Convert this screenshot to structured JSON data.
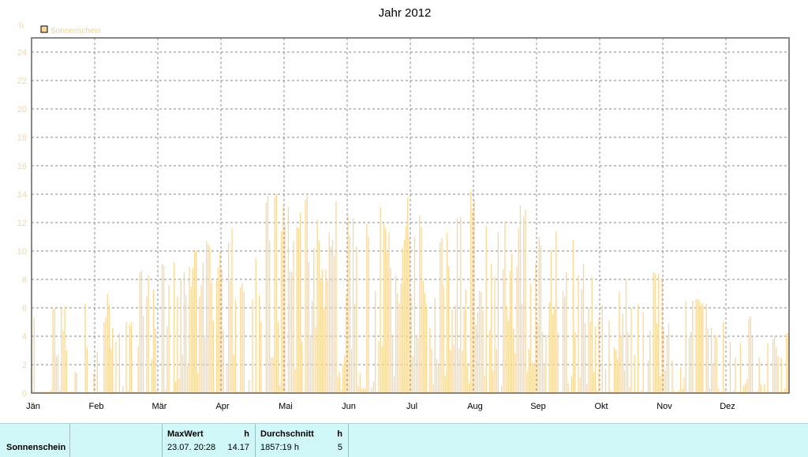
{
  "colors": {
    "bar": "#fcd798",
    "grid": "#888888",
    "y_tick_label": "#f5d6a0",
    "stats_background": "#d0f8f8"
  },
  "chart_data": {
    "type": "bar",
    "title": "Jahr 2012",
    "ylabel": "h",
    "ylim": [
      0,
      25
    ],
    "y_ticks": [
      0,
      2,
      4,
      6,
      8,
      10,
      12,
      14,
      16,
      18,
      20,
      22,
      24
    ],
    "x_tick_labels": [
      "Jän",
      "Feb",
      "Mär",
      "Apr",
      "Mai",
      "Jun",
      "Jul",
      "Aug",
      "Sep",
      "Okt",
      "Nov",
      "Dez"
    ],
    "grid": true,
    "legend_position": "top-left",
    "series": [
      {
        "name": "Sonnenschein",
        "color": "#fcd798",
        "values": [
          0.2,
          5.3,
          0.1,
          0.1,
          0.1,
          0.1,
          0.1,
          0.1,
          0.1,
          0.1,
          0.1,
          0.2,
          5.9,
          6.0,
          2.6,
          2.7,
          0.2,
          6.0,
          4.4,
          6.1,
          3.0,
          0.1,
          0.1,
          0.1,
          0.1,
          1.5,
          1.4,
          0.1,
          0.1,
          0.0,
          0.0,
          6.3,
          3.2,
          0.1,
          0.0,
          0.0,
          1.4,
          0.1,
          2.9,
          0.1,
          0.1,
          0.1,
          5.0,
          5.3,
          7.0,
          6.2,
          3.1,
          4.6,
          0.1,
          3.6,
          0.1,
          4.2,
          0.1,
          0.5,
          0.1,
          5.0,
          0.2,
          4.8,
          5.0,
          0.1,
          0.1,
          0.1,
          3.3,
          8.5,
          8.6,
          5.4,
          0.1,
          6.8,
          8.3,
          0.1,
          2.4,
          7.3,
          4.5,
          0.2,
          0.1,
          0.1,
          9.1,
          9.0,
          0.2,
          4.7,
          7.6,
          0.1,
          0.1,
          9.2,
          0.8,
          6.8,
          1.0,
          8.0,
          2.7,
          8.5,
          6.9,
          1.9,
          8.9,
          7.5,
          8.8,
          10.0,
          10.0,
          1.4,
          6.8,
          7.6,
          9.2,
          3.9,
          10.7,
          10.5,
          10.3,
          7.8,
          5.1,
          0.1,
          7.9,
          8.8,
          9.9,
          8.7,
          4.4,
          0.1,
          1.9,
          10.6,
          7.9,
          11.6,
          2.7,
          6.6,
          0.1,
          0.1,
          7.4,
          7.7,
          7.1,
          0.1,
          0.1,
          0.9,
          0.1,
          6.6,
          0.1,
          9.5,
          0.1,
          6.9,
          5.0,
          0.1,
          0.1,
          13.4,
          13.9,
          10.7,
          2.5,
          2.5,
          13.8,
          14.0,
          5.0,
          0.5,
          11.4,
          13.2,
          11.8,
          0.1,
          13.1,
          8.6,
          8.5,
          10.7,
          1.7,
          11.7,
          11.6,
          12.7,
          3.6,
          0.1,
          13.6,
          13.9,
          9.2,
          4.1,
          6.5,
          10.2,
          4.6,
          12.2,
          10.7,
          7.9,
          8.7,
          6.0,
          8.7,
          7.9,
          11.3,
          10.3,
          10.8,
          9.7,
          13.5,
          1.1,
          1.5,
          0.2,
          2.0,
          2.6,
          6.9,
          12.5,
          11.1,
          3.1,
          12.3,
          6.3,
          10.3,
          0.5,
          1.4,
          0.3,
          0.3,
          0.3,
          11.9,
          11.0,
          0.1,
          0.4,
          0.8,
          7.2,
          0.1,
          3.7,
          13.1,
          3.3,
          11.9,
          11.6,
          9.9,
          11.3,
          8.8,
          4.1,
          1.2,
          8.3,
          7.0,
          6.3,
          7.7,
          10.2,
          10.8,
          11.8,
          13.8,
          10.9,
          6.9,
          2.6,
          11.0,
          4.1,
          3.9,
          12.5,
          11.7,
          7.9,
          7.0,
          6.2,
          0.1,
          4.6,
          3.1,
          0.6,
          6.7,
          2.4,
          2.1,
          10.6,
          10.9,
          7.6,
          1.2,
          11.3,
          8.9,
          3.0,
          5.9,
          3.4,
          6.2,
          12.3,
          3.1,
          12.4,
          3.0,
          5.9,
          7.3,
          2.1,
          0.7,
          14.2,
          12.8,
          13.6,
          4.8,
          5.7,
          7.2,
          7.1,
          5.8,
          1.2,
          11.8,
          0.1,
          4.4,
          9.1,
          1.6,
          8.2,
          3.1,
          11.3,
          0.1,
          0.5,
          8.7,
          12.1,
          6.1,
          5.1,
          8.6,
          9.8,
          4.5,
          2.8,
          8.9,
          11.6,
          13.2,
          6.3,
          12.4,
          12.9,
          1.5,
          3.1,
          7.7,
          2.2,
          2.0,
          9.1,
          4.9,
          11.0,
          10.4,
          4.3,
          2.1,
          4.1,
          0.1,
          6.4,
          10.1,
          5.6,
          6.1,
          11.4,
          4.2,
          0.1,
          0.1,
          7.2,
          6.8,
          8.5,
          0.7,
          0.1,
          1.2,
          10.8,
          4.3,
          0.1,
          8.3,
          1.1,
          7.3,
          9.1,
          4.9,
          0.6,
          6.0,
          5.0,
          8.2,
          1.5,
          4.7,
          0.2,
          5.2,
          0.1,
          6.2,
          0.1,
          1.7,
          0.1,
          5.1,
          0.2,
          0.1,
          3.2,
          3.0,
          2.4,
          7.1,
          4.0,
          5.6,
          1.6,
          8.0,
          4.3,
          0.4,
          6.0,
          0.1,
          2.7,
          0.1,
          6.2,
          0.1,
          0.2,
          5.7,
          0.1,
          0.1,
          2.3,
          4.4,
          0.1,
          8.5,
          8.4,
          4.9,
          8.4,
          1.2,
          8.0,
          4.5,
          1.6,
          4.0,
          4.9,
          0.1,
          2.3,
          0.2,
          0.1,
          0.1,
          0.2,
          1.8,
          0.3,
          1.1,
          6.5,
          0.1,
          3.9,
          4.3,
          6.5,
          0.1,
          6.6,
          6.6,
          6.5,
          6.2,
          6.3,
          0.1,
          6.3,
          4.5,
          0.3,
          4.6,
          2.1,
          4.1,
          4.0,
          0.3,
          0.1,
          0.1,
          5.0,
          0.2,
          0.1,
          0.1,
          3.6,
          0.1,
          0.2,
          2.5,
          0.1,
          0.1,
          3.5,
          0.1,
          0.5,
          0.7,
          1.0,
          5.2,
          5.4,
          4.0,
          0.1,
          0.1,
          0.2,
          2.5,
          0.6,
          0.1,
          0.6,
          0.1,
          3.5,
          0.1,
          0.1,
          3.8,
          4.0,
          3.2,
          2.6,
          0.1,
          2.5,
          0.1,
          0.3,
          4.2,
          4.2
        ]
      }
    ]
  },
  "stats": {
    "row_label": "Sonnenschein",
    "maxwert": {
      "header": "MaxWert",
      "unit": "h",
      "date_time": "23.07.  20:28",
      "value": "14.17"
    },
    "durchschnitt": {
      "header": "Durchschnitt",
      "unit": "h",
      "sum": "1857:19 h",
      "value": "5"
    }
  }
}
